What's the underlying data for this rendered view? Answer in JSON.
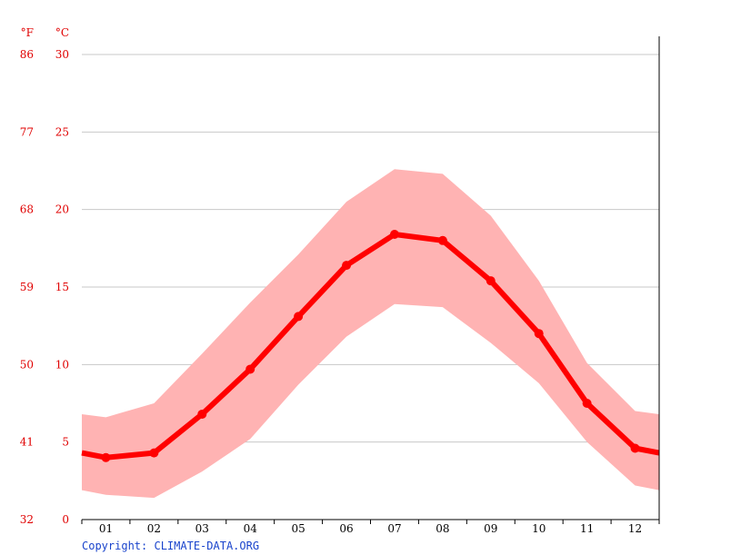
{
  "chart_data": {
    "type": "line",
    "unit_f_label": "°F",
    "unit_c_label": "°C",
    "categories": [
      "01",
      "02",
      "03",
      "04",
      "05",
      "06",
      "07",
      "08",
      "09",
      "10",
      "11",
      "12"
    ],
    "series": [
      {
        "values": [
          4.0,
          4.3,
          6.8,
          9.7,
          13.1,
          16.4,
          18.4,
          18.0,
          15.4,
          12.0,
          7.5,
          4.6
        ]
      }
    ],
    "band": {
      "low": [
        1.6,
        1.4,
        3.1,
        5.2,
        8.7,
        11.8,
        13.9,
        13.7,
        11.4,
        8.8,
        5.0,
        2.2
      ],
      "high": [
        6.6,
        7.5,
        10.7,
        14.0,
        17.1,
        20.5,
        22.6,
        22.3,
        19.6,
        15.4,
        10.1,
        7.0
      ]
    },
    "edge_values": {
      "left": 4.3,
      "right": 4.3
    },
    "edge_band": {
      "left": [
        1.9,
        6.8
      ],
      "right": [
        1.9,
        6.8
      ]
    },
    "y_ticks_c": [
      0,
      5,
      10,
      15,
      20,
      25,
      30
    ],
    "y_ticks_f": [
      32,
      41,
      50,
      59,
      68,
      77,
      86
    ],
    "ylim": [
      0,
      30
    ],
    "grid": true,
    "colors": {
      "line": "#ff0000",
      "band": "#ffb3b3",
      "axis_label": "#e00000",
      "grid": "#c8c8c8"
    }
  },
  "footer": {
    "copyright": "Copyright: CLIMATE-DATA.ORG"
  }
}
